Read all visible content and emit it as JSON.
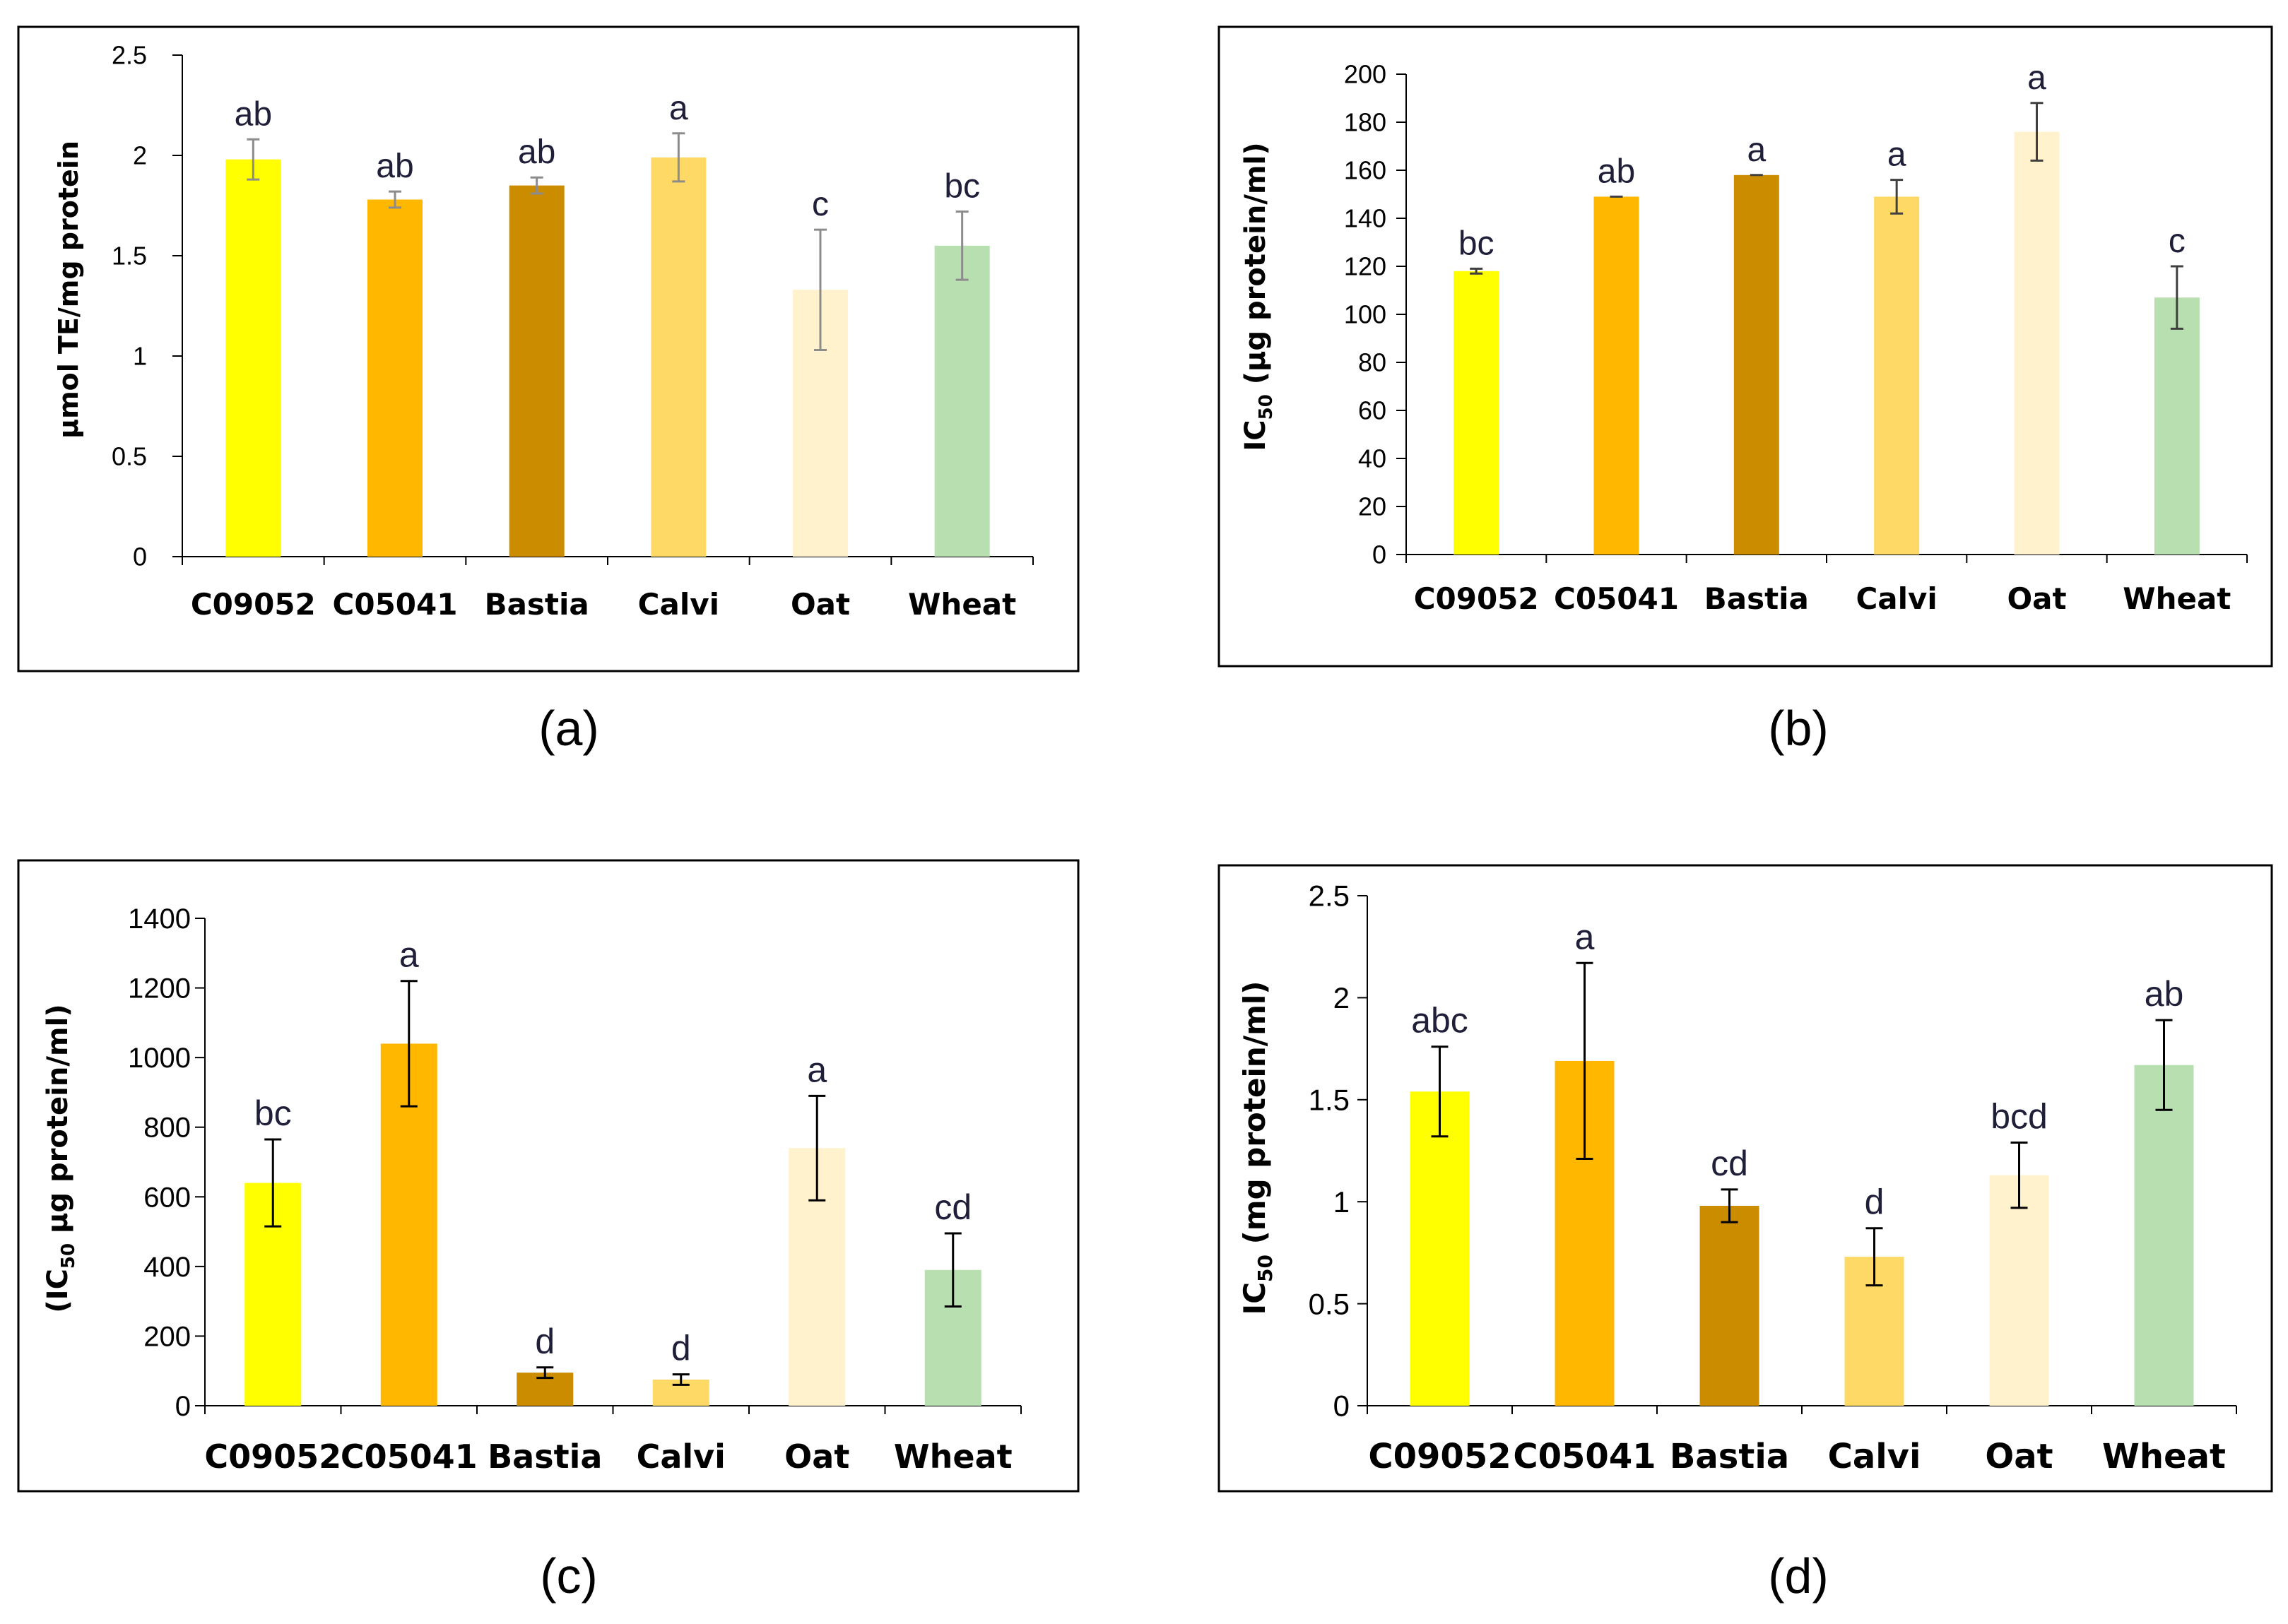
{
  "chart_data": [
    {
      "id": "a",
      "type": "bar",
      "caption": "(a)",
      "categories": [
        "C09052",
        "C05041",
        "Bastia",
        "Calvi",
        "Oat",
        "Wheat"
      ],
      "values": [
        1.98,
        1.78,
        1.85,
        1.99,
        1.33,
        1.55
      ],
      "errors": [
        0.1,
        0.04,
        0.04,
        0.12,
        0.3,
        0.17
      ],
      "letters": [
        "ab",
        "ab",
        "ab",
        "a",
        "c",
        "bc"
      ],
      "colors": [
        "#FFFF00",
        "#FFB700",
        "#CC8C00",
        "#FFD966",
        "#FFF2CC",
        "#B7DFB0"
      ],
      "error_color": "#8c8c8c",
      "ylabel": "μmol TE/mg protein",
      "ylim": [
        0,
        2.5
      ],
      "yticks": [
        0,
        0.5,
        1,
        1.5,
        2,
        2.5
      ],
      "ytick_labels": [
        "0",
        "0.5",
        "1",
        "1.5",
        "2",
        "2.5"
      ]
    },
    {
      "id": "b",
      "type": "bar",
      "caption": "(b)",
      "categories": [
        "C09052",
        "C05041",
        "Bastia",
        "Calvi",
        "Oat",
        "Wheat"
      ],
      "values": [
        118,
        149,
        158,
        149,
        176,
        107
      ],
      "errors": [
        1,
        0,
        0,
        7,
        12,
        13
      ],
      "letters": [
        "bc",
        "ab",
        "a",
        "a",
        "a",
        "c"
      ],
      "colors": [
        "#FFFF00",
        "#FFB700",
        "#CC8C00",
        "#FFD966",
        "#FFF2CC",
        "#B7DFB0"
      ],
      "error_color": "#404040",
      "ylabel_main": "IC",
      "ylabel_sub": "50",
      "ylabel_rest": " (μg protein/ml)",
      "ylim": [
        0,
        200
      ],
      "yticks": [
        0,
        20,
        40,
        60,
        80,
        100,
        120,
        140,
        160,
        180,
        200
      ],
      "ytick_labels": [
        "0",
        "20",
        "40",
        "60",
        "80",
        "100",
        "120",
        "140",
        "160",
        "180",
        "200"
      ]
    },
    {
      "id": "c",
      "type": "bar",
      "caption": "(c)",
      "categories": [
        "C09052",
        "C05041",
        "Bastia",
        "Calvi",
        "Oat",
        "Wheat"
      ],
      "values": [
        640,
        1040,
        95,
        75,
        740,
        390
      ],
      "errors": [
        125,
        180,
        15,
        15,
        150,
        105
      ],
      "letters": [
        "bc",
        "a",
        "d",
        "d",
        "a",
        "cd"
      ],
      "colors": [
        "#FFFF00",
        "#FFB700",
        "#CC8C00",
        "#FFD966",
        "#FFF2CC",
        "#B7DFB0"
      ],
      "error_color": "#000000",
      "ylabel_main": "(IC",
      "ylabel_sub": "50",
      "ylabel_rest": " μg protein/ml)",
      "ylim": [
        0,
        1400
      ],
      "yticks": [
        0,
        200,
        400,
        600,
        800,
        1000,
        1200,
        1400
      ],
      "ytick_labels": [
        "0",
        "200",
        "400",
        "600",
        "800",
        "1000",
        "1200",
        "1400"
      ]
    },
    {
      "id": "d",
      "type": "bar",
      "caption": "(d)",
      "categories": [
        "C09052",
        "C05041",
        "Bastia",
        "Calvi",
        "Oat",
        "Wheat"
      ],
      "values": [
        1.54,
        1.69,
        0.98,
        0.73,
        1.13,
        1.67
      ],
      "errors": [
        0.22,
        0.48,
        0.08,
        0.14,
        0.16,
        0.22
      ],
      "letters": [
        "abc",
        "a",
        "cd",
        "d",
        "bcd",
        "ab"
      ],
      "colors": [
        "#FFFF00",
        "#FFB700",
        "#CC8C00",
        "#FFD966",
        "#FFF2CC",
        "#B7DFB0"
      ],
      "error_color": "#000000",
      "ylabel_main": "IC",
      "ylabel_sub": "50",
      "ylabel_rest": " (mg protein/ml)",
      "ylim": [
        0,
        2.5
      ],
      "yticks": [
        0,
        0.5,
        1,
        1.5,
        2,
        2.5
      ],
      "ytick_labels": [
        "0",
        "0.5",
        "1",
        "1.5",
        "2",
        "2.5"
      ]
    }
  ]
}
